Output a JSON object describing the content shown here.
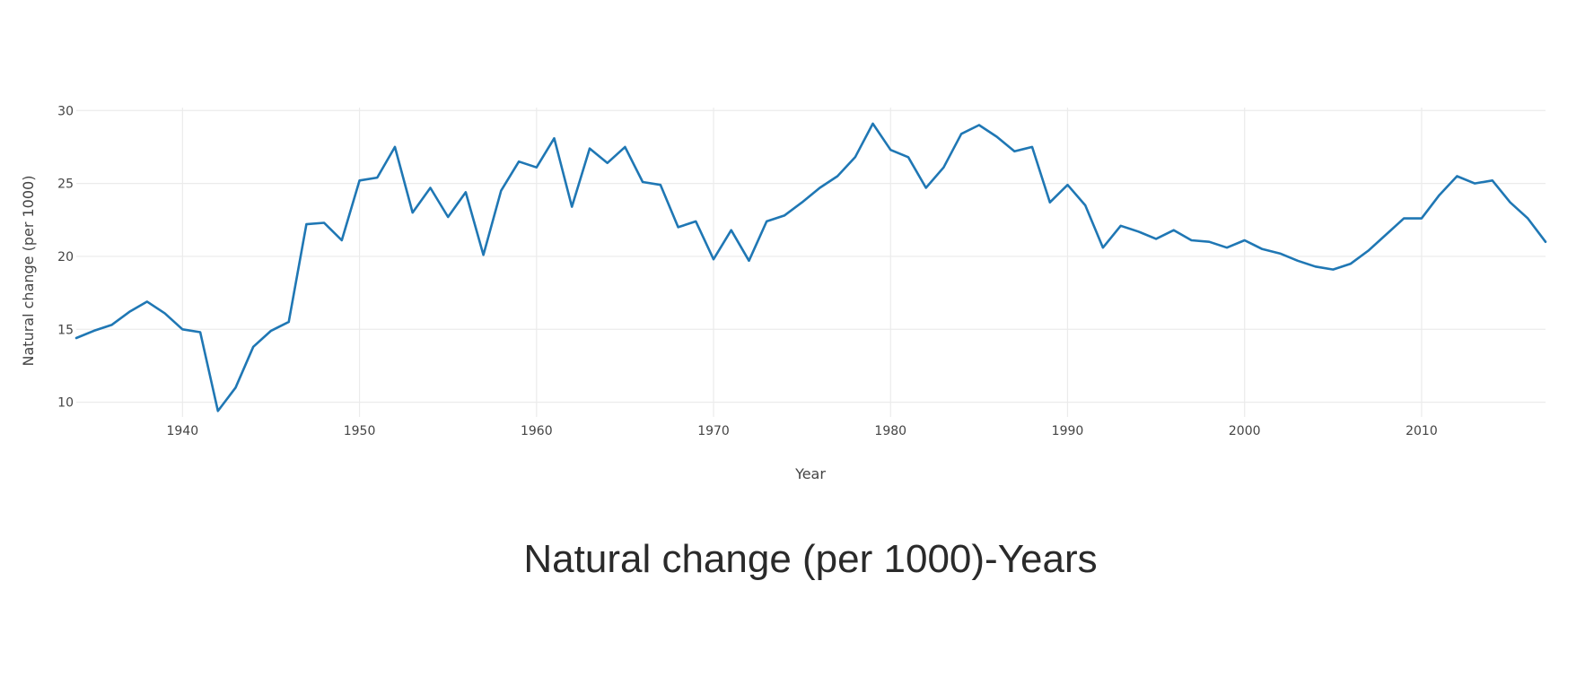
{
  "chart_data": {
    "type": "line",
    "title": "Natural change (per 1000)-Years",
    "xlabel": "Year",
    "ylabel": "Natural change (per 1000)",
    "xlim": [
      1934,
      2017
    ],
    "ylim": [
      9.3,
      30.2
    ],
    "x_ticks": [
      1940,
      1950,
      1960,
      1970,
      1980,
      1990,
      2000,
      2010
    ],
    "y_ticks": [
      10,
      15,
      20,
      25,
      30
    ],
    "grid": true,
    "line_color": "#1f77b4",
    "grid_color": "#ebebeb",
    "series": [
      {
        "x": [
          1934,
          1935,
          1936,
          1937,
          1938,
          1939,
          1940,
          1941,
          1942,
          1943,
          1944,
          1945,
          1946,
          1947,
          1948,
          1949,
          1950,
          1951,
          1952,
          1953,
          1954,
          1955,
          1956,
          1957,
          1958,
          1959,
          1960,
          1961,
          1962,
          1963,
          1964,
          1965,
          1966,
          1967,
          1968,
          1969,
          1970,
          1971,
          1972,
          1973,
          1974,
          1975,
          1976,
          1977,
          1978,
          1979,
          1980,
          1981,
          1982,
          1983,
          1984,
          1985,
          1986,
          1987,
          1988,
          1989,
          1990,
          1991,
          1992,
          1993,
          1994,
          1995,
          1996,
          1997,
          1998,
          1999,
          2000,
          2001,
          2002,
          2003,
          2004,
          2005,
          2006,
          2007,
          2008,
          2009,
          2010,
          2011,
          2012,
          2013,
          2014,
          2015,
          2016,
          2017
        ],
        "y": [
          14.4,
          14.9,
          15.3,
          16.2,
          16.9,
          16.1,
          15.0,
          14.8,
          9.4,
          11.0,
          13.8,
          14.9,
          15.5,
          22.2,
          22.3,
          21.1,
          25.2,
          25.4,
          27.5,
          23.0,
          24.7,
          22.7,
          24.4,
          20.1,
          24.5,
          26.5,
          26.1,
          28.1,
          23.4,
          27.4,
          26.4,
          27.5,
          25.1,
          24.9,
          22.0,
          22.4,
          19.8,
          21.8,
          19.7,
          22.4,
          22.8,
          23.7,
          24.7,
          25.5,
          26.8,
          29.1,
          27.3,
          26.8,
          24.7,
          26.1,
          28.4,
          29.0,
          28.2,
          27.2,
          27.5,
          23.7,
          24.9,
          23.5,
          20.6,
          22.1,
          21.7,
          21.2,
          21.8,
          21.1,
          21.0,
          20.6,
          21.1,
          20.5,
          20.2,
          19.7,
          19.3,
          19.1,
          19.5,
          20.4,
          21.5,
          22.6,
          22.6,
          24.2,
          25.5,
          25.0,
          25.2,
          23.7,
          22.6,
          21.0
        ]
      }
    ]
  }
}
